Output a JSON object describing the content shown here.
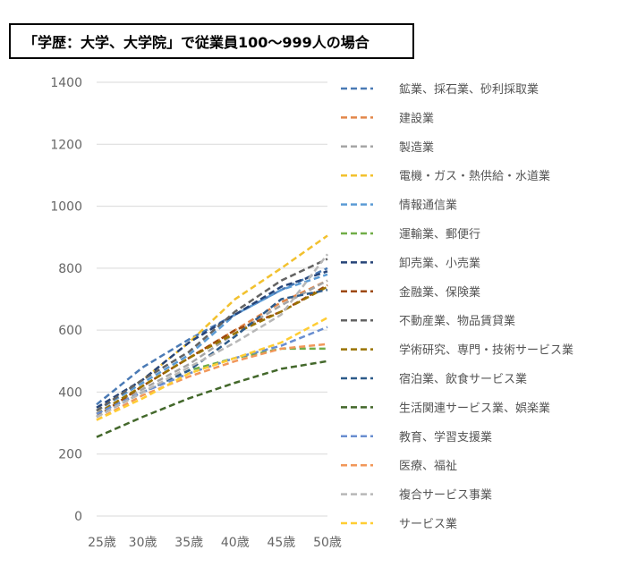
{
  "title": "「学歴：大学、大学院」で従業員100～999人の場合",
  "chart_data": {
    "type": "line",
    "title": "「学歴：大学、大学院」で従業員100～999人の場合",
    "categories": [
      "25歳",
      "30歳",
      "35歳",
      "40歳",
      "45歳",
      "50歳"
    ],
    "ylim": [
      0,
      1400
    ],
    "yticks": [
      0,
      200,
      400,
      600,
      800,
      1000,
      1200,
      1400
    ],
    "grid": true,
    "legend": "right",
    "line_style": "dashed",
    "series": [
      {
        "name": "鉱業、採石業、砂利採取業",
        "color": "#4a7ab5",
        "values": [
          360,
          480,
          570,
          650,
          730,
          800
        ]
      },
      {
        "name": "建設業",
        "color": "#e2874a",
        "values": [
          330,
          420,
          510,
          600,
          690,
          760
        ]
      },
      {
        "name": "製造業",
        "color": "#a5a5a5",
        "values": [
          330,
          410,
          490,
          590,
          680,
          760
        ]
      },
      {
        "name": "電機・ガス・熱供給・水道業",
        "color": "#f2c12e",
        "values": [
          340,
          440,
          560,
          700,
          800,
          905
        ]
      },
      {
        "name": "情報通信業",
        "color": "#5b9bd5",
        "values": [
          340,
          430,
          520,
          650,
          730,
          780
        ]
      },
      {
        "name": "運輸業、郵便行",
        "color": "#70ad47",
        "values": [
          320,
          400,
          470,
          510,
          540,
          540
        ]
      },
      {
        "name": "卸売業、小売業",
        "color": "#264478",
        "values": [
          350,
          440,
          560,
          650,
          740,
          790
        ]
      },
      {
        "name": "金融業、保険業",
        "color": "#9e480e",
        "values": [
          320,
          420,
          510,
          600,
          660,
          745
        ]
      },
      {
        "name": "不動産業、物品賃貸業",
        "color": "#636363",
        "values": [
          340,
          440,
          530,
          660,
          760,
          830
        ]
      },
      {
        "name": "学術研究、専門・技術サービス業",
        "color": "#997300",
        "values": [
          330,
          420,
          510,
          590,
          660,
          740
        ]
      },
      {
        "name": "宿泊業、飲食サービス業",
        "color": "#2e5b8a",
        "values": [
          320,
          400,
          470,
          580,
          700,
          730
        ]
      },
      {
        "name": "生活関連サービス業、娯楽業",
        "color": "#43682b",
        "values": [
          255,
          320,
          380,
          430,
          475,
          500
        ]
      },
      {
        "name": "教育、学習支援業",
        "color": "#698ed0",
        "values": [
          330,
          400,
          460,
          510,
          550,
          610
        ]
      },
      {
        "name": "医療、福祉",
        "color": "#f1975a",
        "values": [
          310,
          390,
          450,
          500,
          540,
          555
        ]
      },
      {
        "name": "複合サービス事業",
        "color": "#b7b7b7",
        "values": [
          320,
          400,
          480,
          560,
          650,
          845
        ]
      },
      {
        "name": "サービス業",
        "color": "#ffcd33",
        "values": [
          310,
          380,
          460,
          510,
          560,
          640
        ]
      }
    ]
  }
}
